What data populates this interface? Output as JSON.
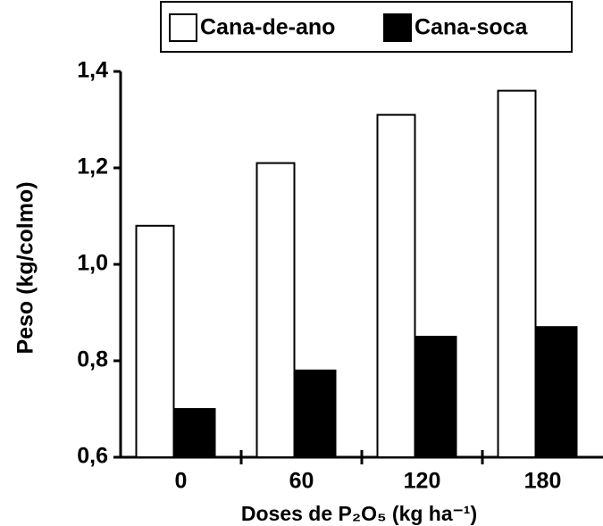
{
  "chart_data": {
    "type": "bar",
    "categories": [
      "0",
      "60",
      "120",
      "180"
    ],
    "series": [
      {
        "name": "Cana-de-ano",
        "color": "#ffffff",
        "values": [
          1.08,
          1.21,
          1.31,
          1.36
        ]
      },
      {
        "name": "Cana-soca",
        "color": "#000000",
        "values": [
          0.7,
          0.78,
          0.85,
          0.87
        ]
      }
    ],
    "y_label": "Peso (kg/colmo)",
    "x_label": "Doses de P₂O₅ (kg ha⁻¹)",
    "ylim": [
      0.6,
      1.4
    ],
    "yticks": [
      {
        "value": 0.6,
        "label": "0,6"
      },
      {
        "value": 0.8,
        "label": "0,8"
      },
      {
        "value": 1.0,
        "label": "1,0"
      },
      {
        "value": 1.2,
        "label": "1,2"
      },
      {
        "value": 1.4,
        "label": "1,4"
      }
    ],
    "legend": "top",
    "grid": false
  }
}
